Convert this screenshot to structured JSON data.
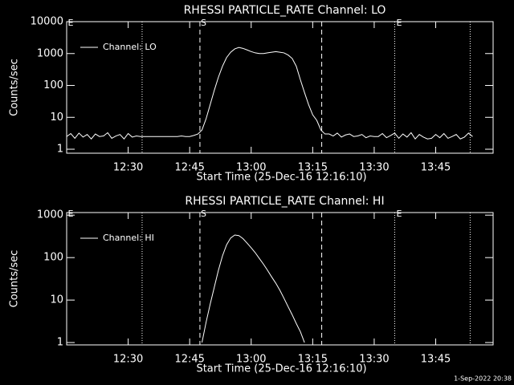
{
  "chart_data": [
    {
      "type": "line",
      "title": "RHESSI PARTICLE_RATE Channel: LO",
      "xlabel": "Start Time (25-Dec-16 12:16:10)",
      "ylabel": "Counts/sec",
      "log_y": true,
      "legend": "upper left",
      "x": [
        735,
        736,
        737,
        738,
        739,
        740,
        741,
        742,
        743,
        744,
        745,
        746,
        747,
        748,
        749,
        750,
        751,
        752,
        753,
        754,
        755,
        756,
        757,
        758,
        759,
        760,
        761,
        762,
        763,
        764,
        765,
        766,
        767,
        768,
        769,
        770,
        771,
        772,
        773,
        774,
        775,
        776,
        777,
        778,
        779,
        780,
        781,
        782,
        783,
        784,
        785,
        786,
        787,
        788,
        789,
        790,
        791,
        792,
        793,
        794,
        795,
        796,
        797,
        798,
        799,
        800,
        801,
        802,
        803,
        804,
        805,
        806,
        807,
        808,
        809,
        810,
        811,
        812,
        813,
        814,
        815,
        816,
        817,
        818,
        819,
        820,
        821,
        822,
        823,
        824,
        825,
        826,
        827,
        828,
        829,
        830,
        831,
        832,
        833,
        834
      ],
      "series": [
        {
          "name": "Channel: LO",
          "color": "#ffffff",
          "values": [
            2.5,
            3.1,
            2.2,
            3.2,
            2.4,
            2.9,
            2.1,
            3.0,
            2.5,
            2.6,
            3.3,
            2.2,
            2.6,
            2.9,
            2.1,
            3.1,
            2.4,
            2.6,
            2.5,
            2.5,
            2.5,
            2.5,
            2.5,
            2.5,
            2.5,
            2.5,
            2.5,
            2.5,
            2.6,
            2.5,
            2.5,
            2.7,
            3.0,
            4,
            9,
            25,
            70,
            180,
            400,
            750,
            1100,
            1400,
            1550,
            1450,
            1300,
            1150,
            1050,
            1000,
            1000,
            1050,
            1100,
            1150,
            1100,
            1050,
            900,
            700,
            400,
            150,
            60,
            25,
            12,
            8,
            4,
            3,
            3,
            2.6,
            3.2,
            2.4,
            2.8,
            3.0,
            2.5,
            2.6,
            2.9,
            2.3,
            2.6,
            2.5,
            2.5,
            3.1,
            2.3,
            2.7,
            3.2,
            2.2,
            3.0,
            2.4,
            3.3,
            2.1,
            2.9,
            2.4,
            2.1,
            2.2,
            2.9,
            2.3,
            3.1,
            2.2,
            2.5,
            2.9,
            2.1,
            2.4,
            3.2,
            2.5
          ]
        }
      ],
      "xlim": [
        735,
        839
      ],
      "xticks": [
        {
          "value": 750,
          "label": "12:30"
        },
        {
          "value": 765,
          "label": "12:45"
        },
        {
          "value": 780,
          "label": "13:00"
        },
        {
          "value": 795,
          "label": "13:15"
        },
        {
          "value": 810,
          "label": "13:30"
        },
        {
          "value": 825,
          "label": "13:45"
        }
      ],
      "ylim": [
        0.75,
        10000
      ],
      "yticks": [
        1,
        10,
        100,
        1000,
        10000
      ],
      "vlines": [
        {
          "x": 753.4,
          "style": "dotted"
        },
        {
          "x": 767.5,
          "style": "dashed"
        },
        {
          "x": 797.2,
          "style": "dashed"
        },
        {
          "x": 815.0,
          "style": "dotted"
        },
        {
          "x": 833.4,
          "style": "dotted"
        }
      ],
      "annotations": [
        {
          "text": "E",
          "x": 735.3
        },
        {
          "text": "S",
          "x": 767.7
        },
        {
          "text": "E",
          "x": 815.4
        }
      ]
    },
    {
      "type": "line",
      "title": "RHESSI PARTICLE_RATE Channel: HI",
      "xlabel": "Start Time (25-Dec-16 12:16:10)",
      "ylabel": "Counts/sec",
      "log_y": true,
      "legend": "upper left",
      "x": [
        768,
        769,
        770,
        771,
        772,
        773,
        774,
        775,
        776,
        777,
        778,
        779,
        780,
        781,
        782,
        783,
        784,
        785,
        786,
        787,
        788,
        789,
        790,
        791,
        792,
        793
      ],
      "series": [
        {
          "name": "Channel: HI",
          "color": "#ffffff",
          "values": [
            1,
            3,
            8,
            20,
            50,
            110,
            200,
            290,
            340,
            330,
            280,
            220,
            170,
            130,
            95,
            70,
            50,
            35,
            25,
            17,
            11,
            7,
            4.5,
            2.8,
            1.8,
            1
          ]
        }
      ],
      "xlim": [
        735,
        839
      ],
      "xticks": [
        {
          "value": 750,
          "label": "12:30"
        },
        {
          "value": 765,
          "label": "12:45"
        },
        {
          "value": 780,
          "label": "13:00"
        },
        {
          "value": 795,
          "label": "13:15"
        },
        {
          "value": 810,
          "label": "13:30"
        },
        {
          "value": 825,
          "label": "13:45"
        }
      ],
      "ylim": [
        0.88,
        1150
      ],
      "yticks": [
        1,
        10,
        100,
        1000
      ],
      "vlines": [
        {
          "x": 753.4,
          "style": "dotted"
        },
        {
          "x": 767.5,
          "style": "dashed"
        },
        {
          "x": 797.2,
          "style": "dashed"
        },
        {
          "x": 815.0,
          "style": "dotted"
        },
        {
          "x": 833.4,
          "style": "dotted"
        }
      ],
      "annotations": [
        {
          "text": "E",
          "x": 735.3
        },
        {
          "text": "S",
          "x": 767.7
        },
        {
          "text": "E",
          "x": 815.4
        }
      ]
    }
  ],
  "footer": "1-Sep-2022 20:38"
}
